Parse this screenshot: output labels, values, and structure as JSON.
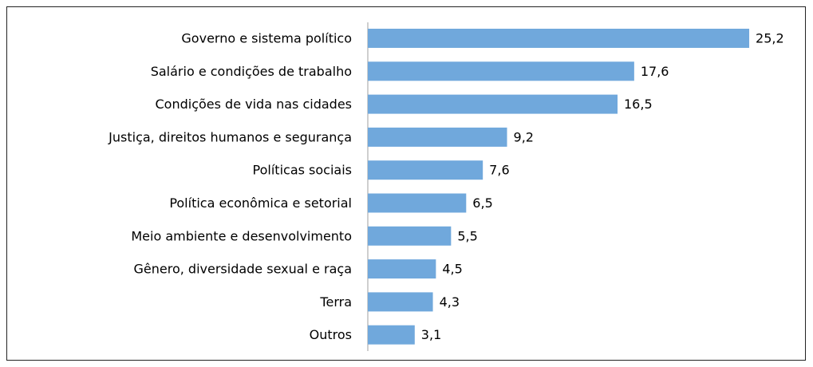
{
  "chart_data": {
    "type": "bar",
    "orientation": "horizontal",
    "categories": [
      "Governo e sistema político",
      "Salário e condições de trabalho",
      "Condições de vida nas cidades",
      "Justiça, direitos humanos e segurança",
      "Políticas sociais",
      "Política econômica e setorial",
      "Meio ambiente e desenvolvimento",
      "Gênero, diversidade sexual e raça",
      "Terra",
      "Outros"
    ],
    "values": [
      25.2,
      17.6,
      16.5,
      9.2,
      7.6,
      6.5,
      5.5,
      4.5,
      4.3,
      3.1
    ],
    "value_labels": [
      "25,2",
      "17,6",
      "16,5",
      "9,2",
      "7,6",
      "6,5",
      "5,5",
      "4,5",
      "4,3",
      "3,1"
    ],
    "color": "#70a8dc"
  }
}
